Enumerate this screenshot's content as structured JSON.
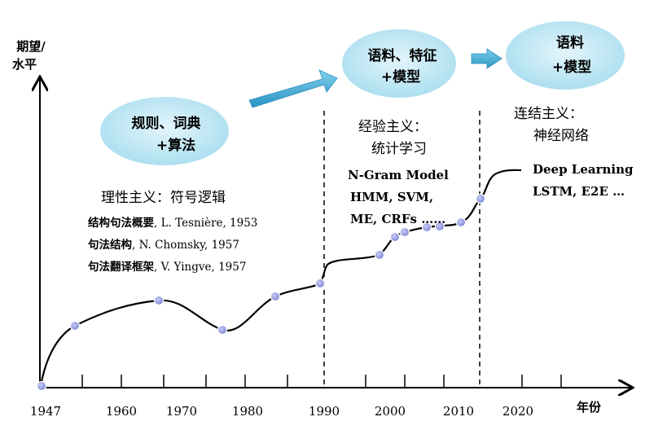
{
  "axes": {
    "y_label": [
      "期望/",
      "水平"
    ],
    "x_label": "年份",
    "x_ticks": [
      "1947",
      "1960",
      "1970",
      "1980",
      "1990",
      "2000",
      "2010",
      "2020"
    ]
  },
  "bubbles": {
    "rules": [
      "规则、词典",
      "+算法"
    ],
    "corpus_features": [
      "语料、特征",
      "+模型"
    ],
    "corpus_model": [
      "语料",
      "+模型"
    ]
  },
  "eras": {
    "rationalism": {
      "title": "理性主义：符号逻辑",
      "refs": [
        {
          "cn": "结构句法概要",
          "en": ", L. Tesnière, 1953"
        },
        {
          "cn": "句法结构",
          "en": ", N. Chomsky, 1957"
        },
        {
          "cn": "句法翻译框架",
          "en": ", V. Yingve, 1957"
        }
      ]
    },
    "empiricism": {
      "title": [
        "经验主义：",
        "统计学习"
      ],
      "methods": [
        "N-Gram Model",
        "HMM, SVM,",
        "ME, CRFs ……"
      ]
    },
    "connectionism": {
      "title": [
        "连结主义：",
        "神经网络"
      ],
      "methods": [
        "Deep Learning",
        "LSTM, E2E …"
      ]
    }
  },
  "colors": {
    "bubble_fill": "#b7e4f2",
    "arrow_fill": "#3fa9d3",
    "point_fill": "#8e98e0",
    "curve": "#000000"
  }
}
